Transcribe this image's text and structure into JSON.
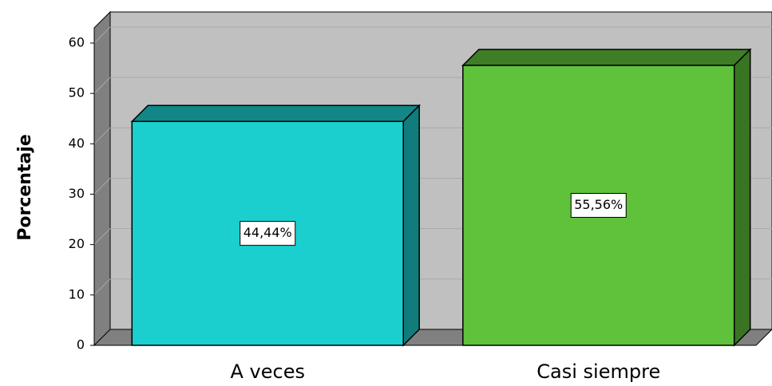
{
  "chart_data": {
    "type": "bar3d",
    "y_label": "Porcentaje",
    "categories": [
      "A veces",
      "Casi siempre"
    ],
    "values": [
      44.44,
      55.56
    ],
    "value_labels": [
      "44,44%",
      "55,56%"
    ],
    "colors": [
      "#1ccfcf",
      "#5fc23a"
    ],
    "ylim": [
      0,
      63
    ],
    "yticks": [
      0,
      10,
      20,
      30,
      40,
      50,
      60
    ],
    "grid": true
  }
}
